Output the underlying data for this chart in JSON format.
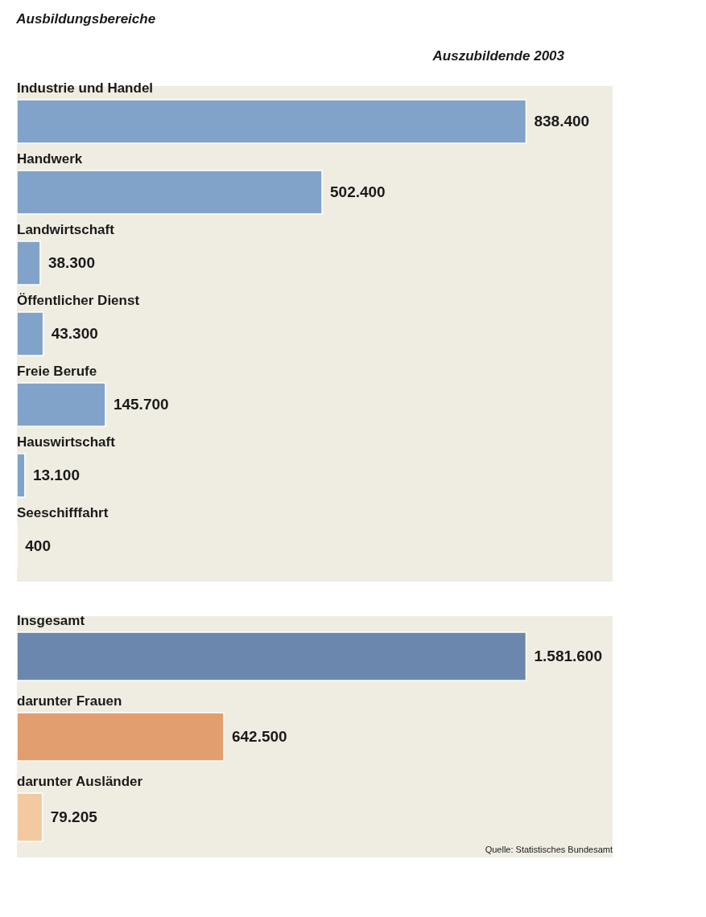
{
  "chart_data": [
    {
      "type": "bar",
      "orientation": "horizontal",
      "title": "Ausbildungsbereiche",
      "subtitle": "Auszubildende  2003",
      "categories": [
        "Industrie und Handel",
        "Handwerk",
        "Landwirtschaft",
        "Öffentlicher Dienst",
        "Freie Berufe",
        "Hauswirtschaft",
        "Seeschifffahrt"
      ],
      "values": [
        838400,
        502400,
        38300,
        43300,
        145700,
        13100,
        400
      ],
      "value_labels": [
        "838.400",
        "502.400",
        "38.300",
        "43.300",
        "145.700",
        "13.100",
        "400"
      ],
      "color": "#82a3c9"
    },
    {
      "type": "bar",
      "orientation": "horizontal",
      "categories": [
        "Insgesamt",
        "darunter Frauen",
        "darunter Ausländer"
      ],
      "values": [
        1581600,
        642500,
        79205
      ],
      "value_labels": [
        "1.581.600",
        "642.500",
        "79.205"
      ],
      "colors": [
        "#6b87ad",
        "#e29e6e",
        "#f2c9a0"
      ],
      "annotations": [
        "Quelle: Statistisches Bundesamt"
      ]
    }
  ]
}
